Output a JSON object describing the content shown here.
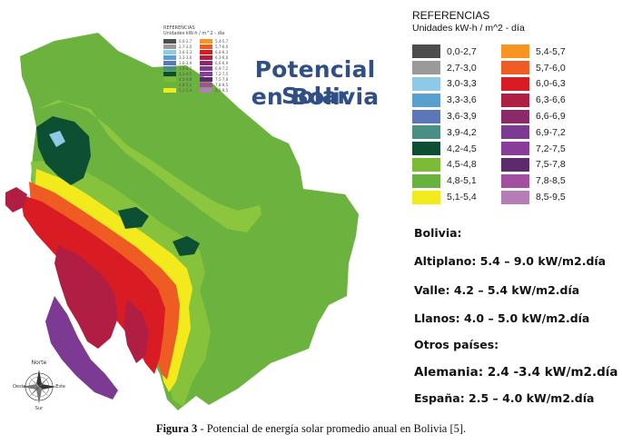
{
  "map": {
    "title_line_1": "Potencial Solar",
    "title_line_2": "en Bolivia",
    "compass": {
      "north": "Norte",
      "south": "Sur",
      "east": "Este",
      "west": "Oeste"
    }
  },
  "legend": {
    "title": "REFERENCIAS",
    "units": "Unidades kW-h / m^2 - día",
    "classes": [
      {
        "range": "0,0-2,7",
        "color": "#4d4d4d"
      },
      {
        "range": "2,7-3,0",
        "color": "#9a9a9a"
      },
      {
        "range": "3,0-3,3",
        "color": "#8ec9e6"
      },
      {
        "range": "3,3-3,6",
        "color": "#5a9fd0"
      },
      {
        "range": "3,6-3,9",
        "color": "#5b77b7"
      },
      {
        "range": "3,9-4,2",
        "color": "#4a8f86"
      },
      {
        "range": "4,2-4,5",
        "color": "#0c4f32"
      },
      {
        "range": "4,5-4,8",
        "color": "#7cbb35"
      },
      {
        "range": "4,8-5,1",
        "color": "#68b33e"
      },
      {
        "range": "5,1-5,4",
        "color": "#f2ea1c"
      },
      {
        "range": "5,4-5,7",
        "color": "#f79422"
      },
      {
        "range": "5,7-6,0",
        "color": "#ee5b23"
      },
      {
        "range": "6,0-6,3",
        "color": "#d91c24"
      },
      {
        "range": "6,3-6,6",
        "color": "#b01f43"
      },
      {
        "range": "6,6-6,9",
        "color": "#8b2a6a"
      },
      {
        "range": "6,9-7,2",
        "color": "#7d3a93"
      },
      {
        "range": "7,2-7,5",
        "color": "#8a3c9a"
      },
      {
        "range": "7,5-7,8",
        "color": "#5e2a6e"
      },
      {
        "range": "7,8-8,5",
        "color": "#a24f9f"
      },
      {
        "range": "8,5-9,5",
        "color": "#b67cb6"
      }
    ]
  },
  "info": {
    "heading": "Bolivia:",
    "lines": [
      "Altiplano: 5.4 – 9.0 kW/m2.día",
      "Valle: 4.2 – 5.4 kW/m2.día",
      "Llanos: 4.0 – 5.0 kW/m2.día",
      "Otros países:",
      "Alemania: 2.4 -3.4 kW/m2.día",
      "España: 2.5 – 4.0 kW/m2.día"
    ]
  },
  "caption": {
    "label": "Figura 3",
    "text": " - Potencial de energía solar promedio anual en Bolivia [5]."
  }
}
